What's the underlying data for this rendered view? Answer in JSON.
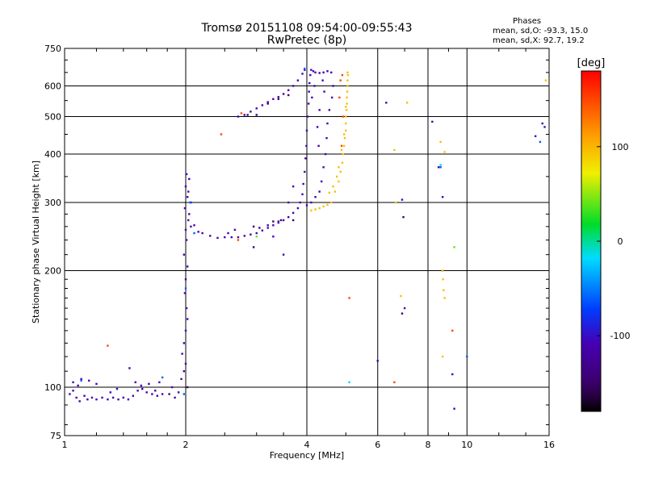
{
  "chart_data": {
    "type": "scatter",
    "title": "Tromsø 20151108 09:54:00-09:55:43",
    "subtitle": "RwPretec (8p)",
    "xlabel": "Frequency [MHz]",
    "ylabel": "Stationary phase Virtual Height [km]",
    "xscale": "log",
    "yscale": "log",
    "xlim": [
      1,
      16
    ],
    "ylim": [
      75,
      750
    ],
    "xticks": [
      1,
      2,
      4,
      6,
      8,
      10,
      16
    ],
    "yticks": [
      75,
      100,
      200,
      300,
      400,
      500,
      600,
      750
    ],
    "grid": true,
    "phase_stats": {
      "header": "Phases",
      "line_o": "mean, sd,O: -93.3, 15.0",
      "line_x": "mean, sd,X: 92.7, 19.2"
    },
    "colorbar": {
      "label": "[deg]",
      "range": [
        -180,
        180
      ],
      "ticks": [
        100,
        0,
        -100
      ]
    },
    "series": [
      {
        "phase": -110,
        "points": [
          [
            1.03,
            96
          ],
          [
            1.05,
            98
          ],
          [
            1.07,
            94
          ],
          [
            1.09,
            92
          ],
          [
            1.12,
            95
          ],
          [
            1.14,
            93
          ],
          [
            1.17,
            94
          ],
          [
            1.2,
            93
          ],
          [
            1.24,
            94
          ],
          [
            1.28,
            93
          ],
          [
            1.32,
            94
          ],
          [
            1.36,
            93
          ],
          [
            1.4,
            94
          ],
          [
            1.44,
            93
          ],
          [
            1.48,
            95
          ],
          [
            1.52,
            98
          ],
          [
            1.56,
            99
          ],
          [
            1.6,
            97
          ],
          [
            1.65,
            96
          ],
          [
            1.7,
            95
          ],
          [
            1.75,
            96
          ],
          [
            1.05,
            103
          ],
          [
            1.08,
            101
          ],
          [
            1.1,
            105
          ],
          [
            1.15,
            104
          ],
          [
            1.2,
            102
          ],
          [
            1.3,
            97
          ],
          [
            1.35,
            99
          ],
          [
            1.45,
            112
          ],
          [
            1.5,
            103
          ],
          [
            1.55,
            101
          ],
          [
            1.62,
            102
          ],
          [
            1.68,
            98
          ],
          [
            1.72,
            103
          ],
          [
            1.85,
            100
          ],
          [
            1.88,
            94
          ],
          [
            1.92,
            97
          ],
          [
            1.95,
            105
          ],
          [
            1.98,
            110
          ],
          [
            2.0,
            115
          ],
          [
            1.96,
            122
          ],
          [
            1.98,
            130
          ],
          [
            2.0,
            140
          ],
          [
            2.02,
            150
          ],
          [
            2.01,
            160
          ],
          [
            1.99,
            175
          ],
          [
            2.0,
            190
          ],
          [
            2.02,
            205
          ],
          [
            1.98,
            220
          ],
          [
            2.01,
            240
          ],
          [
            2.0,
            255
          ],
          [
            2.03,
            270
          ],
          [
            1.99,
            290
          ],
          [
            2.02,
            310
          ],
          [
            2.0,
            330
          ],
          [
            2.01,
            355
          ],
          [
            2.04,
            345
          ],
          [
            2.03,
            320
          ],
          [
            2.06,
            300
          ],
          [
            2.04,
            280
          ],
          [
            2.06,
            260
          ],
          [
            2.1,
            262
          ],
          [
            2.15,
            252
          ],
          [
            2.2,
            250
          ],
          [
            2.3,
            246
          ],
          [
            2.4,
            243
          ],
          [
            2.5,
            244
          ],
          [
            2.6,
            244
          ],
          [
            2.7,
            244
          ],
          [
            2.8,
            246
          ],
          [
            2.9,
            248
          ],
          [
            3.0,
            250
          ],
          [
            3.1,
            254
          ],
          [
            3.2,
            258
          ],
          [
            3.3,
            262
          ],
          [
            3.4,
            266
          ],
          [
            3.5,
            270
          ],
          [
            3.6,
            275
          ],
          [
            3.7,
            282
          ],
          [
            3.8,
            290
          ],
          [
            3.85,
            300
          ],
          [
            3.9,
            315
          ],
          [
            3.92,
            335
          ],
          [
            3.95,
            360
          ],
          [
            3.97,
            390
          ],
          [
            3.99,
            420
          ],
          [
            4.0,
            460
          ],
          [
            4.02,
            500
          ],
          [
            4.04,
            540
          ],
          [
            4.05,
            580
          ],
          [
            4.06,
            610
          ],
          [
            4.08,
            640
          ],
          [
            4.1,
            660
          ],
          [
            4.15,
            655
          ],
          [
            4.2,
            650
          ],
          [
            4.3,
            648
          ],
          [
            4.4,
            650
          ],
          [
            4.5,
            655
          ],
          [
            4.6,
            650
          ],
          [
            4.65,
            600
          ],
          [
            4.62,
            560
          ],
          [
            4.55,
            520
          ],
          [
            4.5,
            480
          ],
          [
            4.48,
            440
          ],
          [
            4.45,
            400
          ],
          [
            4.4,
            370
          ],
          [
            4.35,
            340
          ],
          [
            4.3,
            320
          ],
          [
            4.2,
            310
          ],
          [
            4.1,
            300
          ],
          [
            4.0,
            295
          ],
          [
            4.12,
            560
          ],
          [
            4.18,
            600
          ],
          [
            4.25,
            470
          ],
          [
            4.3,
            520
          ],
          [
            4.38,
            620
          ],
          [
            4.42,
            580
          ],
          [
            4.28,
            420
          ],
          [
            3.5,
            220
          ],
          [
            3.6,
            300
          ],
          [
            3.7,
            330
          ],
          [
            3.4,
            268
          ],
          [
            2.7,
            500
          ],
          [
            2.8,
            505
          ],
          [
            2.9,
            515
          ],
          [
            3.0,
            525
          ],
          [
            3.1,
            535
          ],
          [
            3.2,
            545
          ],
          [
            3.3,
            555
          ],
          [
            3.4,
            562
          ],
          [
            3.5,
            572
          ],
          [
            3.6,
            585
          ],
          [
            3.7,
            600
          ],
          [
            3.8,
            620
          ],
          [
            3.9,
            645
          ],
          [
            3.95,
            660
          ],
          [
            2.55,
            250
          ],
          [
            2.65,
            255
          ],
          [
            6.3,
            543
          ],
          [
            6.9,
            305
          ],
          [
            7.0,
            160
          ],
          [
            6.0,
            117
          ],
          [
            8.2,
            485
          ],
          [
            8.5,
            370
          ],
          [
            8.7,
            310
          ],
          [
            9.2,
            108
          ],
          [
            9.3,
            88
          ],
          [
            14.8,
            445
          ],
          [
            15.4,
            480
          ],
          [
            15.6,
            470
          ],
          [
            3.3,
            245
          ],
          [
            3.2,
            262
          ]
        ]
      },
      {
        "phase": -150,
        "points": [
          [
            3.0,
            505
          ],
          [
            3.2,
            540
          ],
          [
            3.4,
            555
          ],
          [
            3.6,
            568
          ],
          [
            2.95,
            260
          ],
          [
            3.05,
            258
          ],
          [
            3.3,
            268
          ],
          [
            3.45,
            270
          ],
          [
            3.7,
            270
          ],
          [
            1.82,
            96
          ],
          [
            2.02,
            100
          ],
          [
            6.9,
            155
          ],
          [
            2.95,
            230
          ],
          [
            2.85,
            505
          ],
          [
            6.95,
            275
          ]
        ]
      },
      {
        "phase": -60,
        "points": [
          [
            2.0,
            180
          ],
          [
            2.05,
            300
          ],
          [
            1.98,
            96
          ],
          [
            1.1,
            104
          ],
          [
            8.6,
            370
          ],
          [
            10.0,
            120
          ],
          [
            15.2,
            430
          ],
          [
            3.95,
            665
          ],
          [
            2.1,
            250
          ],
          [
            1.75,
            106
          ]
        ]
      },
      {
        "phase": 95,
        "points": [
          [
            4.6,
            300
          ],
          [
            4.7,
            320
          ],
          [
            4.8,
            340
          ],
          [
            4.85,
            360
          ],
          [
            4.9,
            380
          ],
          [
            4.92,
            400
          ],
          [
            4.95,
            420
          ],
          [
            4.97,
            440
          ],
          [
            5.0,
            460
          ],
          [
            5.0,
            480
          ],
          [
            5.0,
            500
          ],
          [
            5.02,
            520
          ],
          [
            5.03,
            540
          ],
          [
            5.03,
            560
          ],
          [
            5.04,
            580
          ],
          [
            5.05,
            600
          ],
          [
            5.05,
            620
          ],
          [
            5.06,
            640
          ],
          [
            4.5,
            296
          ],
          [
            4.4,
            293
          ],
          [
            4.3,
            290
          ],
          [
            4.2,
            288
          ],
          [
            4.1,
            286
          ],
          [
            4.55,
            318
          ],
          [
            4.65,
            330
          ],
          [
            4.75,
            350
          ],
          [
            4.8,
            370
          ],
          [
            4.88,
            410
          ],
          [
            4.95,
            450
          ],
          [
            5.0,
            530
          ],
          [
            5.05,
            650
          ],
          [
            8.7,
            200
          ],
          [
            8.8,
            170
          ],
          [
            8.75,
            178
          ],
          [
            8.72,
            190
          ],
          [
            7.1,
            543
          ],
          [
            6.6,
            410
          ],
          [
            6.65,
            300
          ],
          [
            6.85,
            172
          ],
          [
            8.6,
            430
          ],
          [
            8.7,
            120
          ],
          [
            15.7,
            620
          ],
          [
            8.8,
            405
          ]
        ]
      },
      {
        "phase": 150,
        "points": [
          [
            4.82,
            560
          ],
          [
            4.85,
            620
          ],
          [
            4.9,
            640
          ],
          [
            4.92,
            500
          ],
          [
            4.88,
            420
          ],
          [
            2.75,
            510
          ],
          [
            2.45,
            450
          ],
          [
            6.6,
            103
          ],
          [
            9.2,
            140
          ],
          [
            5.1,
            170
          ],
          [
            1.28,
            128
          ],
          [
            2.7,
            240
          ]
        ]
      },
      {
        "phase": 40,
        "points": [
          [
            9.3,
            230
          ],
          [
            3.0,
            245
          ]
        ]
      },
      {
        "phase": -20,
        "points": [
          [
            5.1,
            103
          ],
          [
            8.6,
            375
          ]
        ]
      }
    ]
  }
}
